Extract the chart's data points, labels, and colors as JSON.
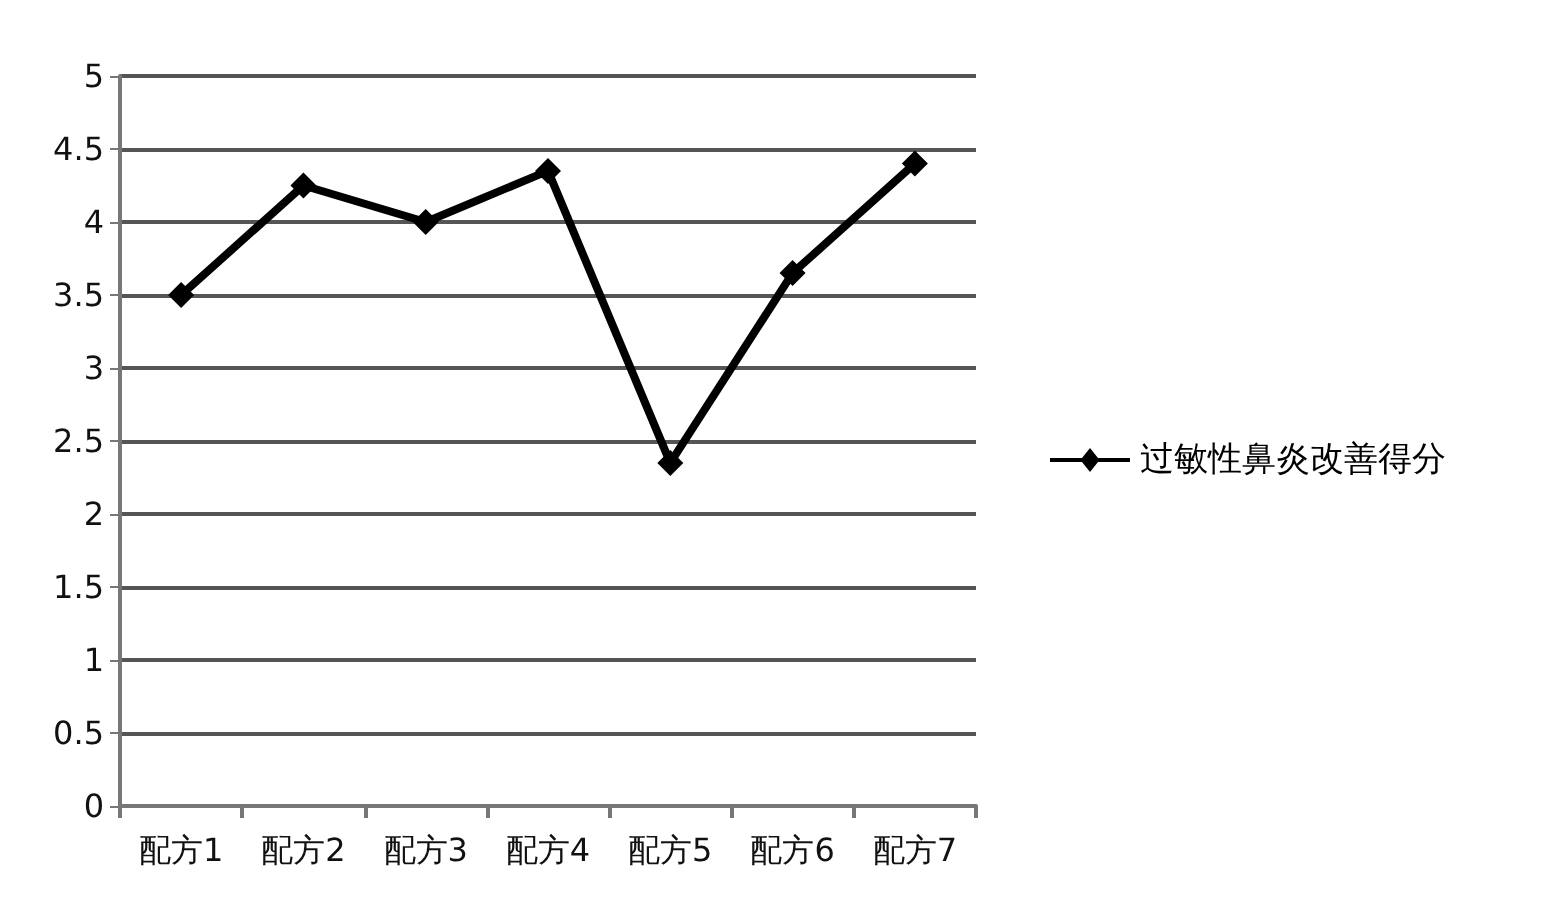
{
  "chart_data": {
    "type": "line",
    "categories": [
      "配方1",
      "配方2",
      "配方3",
      "配方4",
      "配方5",
      "配方6",
      "配方7"
    ],
    "series": [
      {
        "name": "过敏性鼻炎改善得分",
        "color": "#000000",
        "values": [
          3.5,
          4.25,
          4.0,
          4.35,
          2.35,
          3.65,
          4.4
        ]
      }
    ],
    "ylim": [
      0,
      5
    ],
    "yticks": [
      0,
      0.5,
      1,
      1.5,
      2,
      2.5,
      3,
      3.5,
      4,
      4.5,
      5
    ],
    "grid": "y",
    "legend": "right",
    "marker": "diamond",
    "line_style": "solid"
  }
}
